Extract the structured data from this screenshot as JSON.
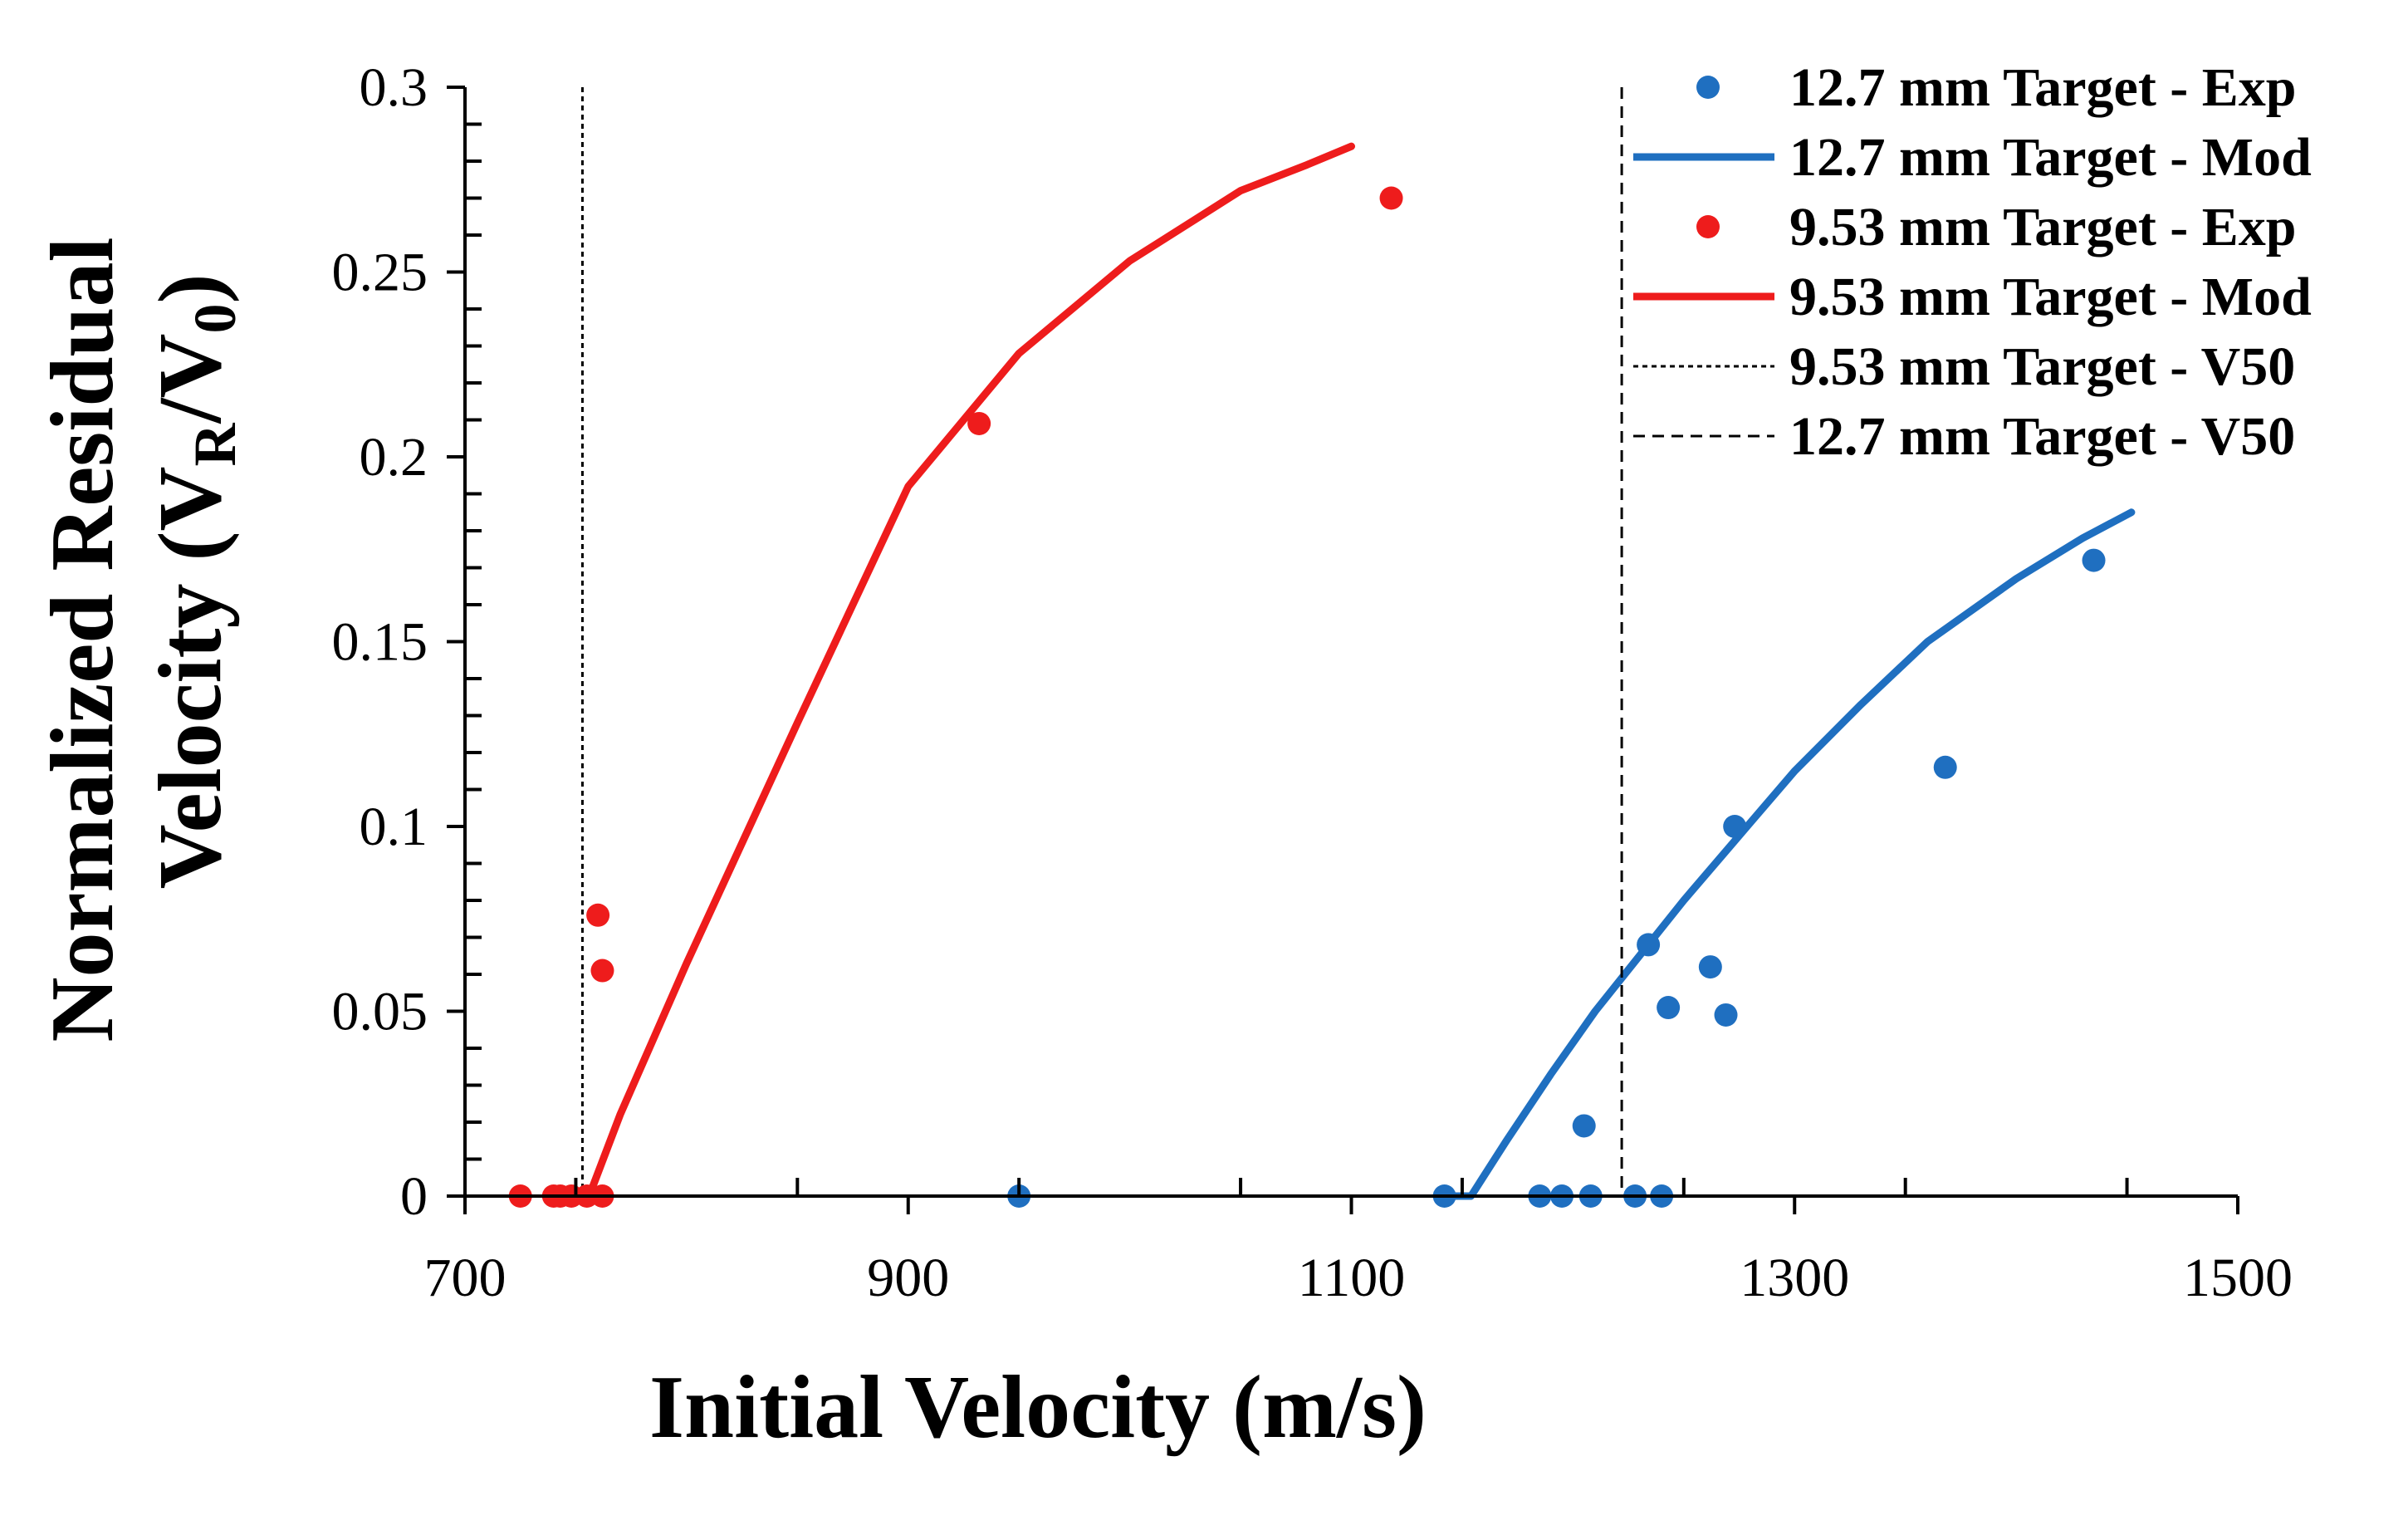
{
  "chart_data": {
    "type": "scatter",
    "xlabel": "Initial Velocity (m/s)",
    "ylabel": {
      "line1": "Normalized Residual",
      "line2_prefix": "Velocity (V",
      "sub1": "R",
      "mid": "/V",
      "sub2": "0",
      "suffix": ")"
    },
    "xlim": [
      700,
      1500
    ],
    "ylim": [
      0,
      0.3
    ],
    "xticks": [
      700,
      900,
      1100,
      1300,
      1500
    ],
    "yticks": [
      0,
      0.05,
      0.1,
      0.15,
      0.2,
      0.25,
      0.3
    ],
    "xtick_labels": [
      "700",
      "900",
      "1100",
      "1300",
      "1500"
    ],
    "ytick_labels": [
      "0",
      "0.05",
      "0.1",
      "0.15",
      "0.2",
      "0.25",
      "0.3"
    ],
    "grid": false,
    "legend_position": "top-right",
    "colors": {
      "blue": "#1f6fc0",
      "red": "#ee1c1c",
      "black": "#000000"
    },
    "series": [
      {
        "name": "12.7 mm Target - Exp",
        "kind": "points",
        "color": "#1f6fc0",
        "points": [
          [
            950,
            0
          ],
          [
            1142,
            0
          ],
          [
            1185,
            0
          ],
          [
            1195,
            0
          ],
          [
            1208,
            0
          ],
          [
            1228,
            0
          ],
          [
            1240,
            0
          ],
          [
            1205,
            0.019
          ],
          [
            1234,
            0.068
          ],
          [
            1243,
            0.051
          ],
          [
            1262,
            0.062
          ],
          [
            1269,
            0.049
          ],
          [
            1273,
            0.1
          ],
          [
            1368,
            0.116
          ],
          [
            1435,
            0.172
          ]
        ]
      },
      {
        "name": "12.7 mm Target - Mod",
        "kind": "line",
        "color": "#1f6fc0",
        "points": [
          [
            1142,
            0
          ],
          [
            1154,
            0
          ],
          [
            1170,
            0.015
          ],
          [
            1190,
            0.033
          ],
          [
            1210,
            0.05
          ],
          [
            1230,
            0.065
          ],
          [
            1250,
            0.08
          ],
          [
            1280,
            0.101
          ],
          [
            1300,
            0.115
          ],
          [
            1330,
            0.133
          ],
          [
            1360,
            0.15
          ],
          [
            1400,
            0.167
          ],
          [
            1430,
            0.178
          ],
          [
            1452,
            0.185
          ]
        ]
      },
      {
        "name": "9.53 mm Target - Exp",
        "kind": "points",
        "color": "#ee1c1c",
        "points": [
          [
            725,
            0
          ],
          [
            740,
            0
          ],
          [
            743,
            0
          ],
          [
            748,
            0
          ],
          [
            755,
            0
          ],
          [
            762,
            0
          ],
          [
            760,
            0.076
          ],
          [
            762,
            0.061
          ],
          [
            932,
            0.209
          ],
          [
            1118,
            0.27
          ]
        ]
      },
      {
        "name": "9.53 mm Target - Mod",
        "kind": "line",
        "color": "#ee1c1c",
        "points": [
          [
            752,
            0
          ],
          [
            756,
            0
          ],
          [
            770,
            0.022
          ],
          [
            800,
            0.063
          ],
          [
            850,
            0.128
          ],
          [
            900,
            0.192
          ],
          [
            950,
            0.228
          ],
          [
            1000,
            0.253
          ],
          [
            1050,
            0.272
          ],
          [
            1080,
            0.279
          ],
          [
            1100,
            0.284
          ]
        ]
      },
      {
        "name": "9.53 mm Target - V50",
        "kind": "vline",
        "style": "dotted",
        "color": "#000000",
        "x": 753
      },
      {
        "name": "12.7 mm Target - V50",
        "kind": "vline",
        "style": "dashed",
        "color": "#000000",
        "x": 1222
      }
    ]
  }
}
